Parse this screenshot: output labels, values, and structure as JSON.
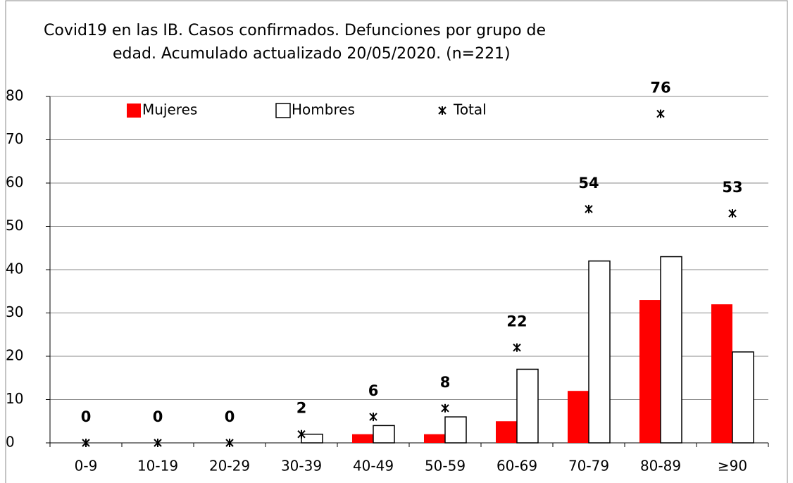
{
  "chart_data": {
    "type": "bar",
    "title": [
      "Covid19 en las IB.  Casos confirmados. Defunciones por grupo de",
      "edad. Acumulado actualizado 20/05/2020. (n=221)"
    ],
    "categories": [
      "0-9",
      "10-19",
      "20-29",
      "30-39",
      "40-49",
      "50-59",
      "60-69",
      "70-79",
      "80-89",
      "≥90"
    ],
    "series": [
      {
        "name": "Mujeres",
        "color": "#ff0000",
        "values": [
          0,
          0,
          0,
          0,
          2,
          2,
          5,
          12,
          33,
          32
        ]
      },
      {
        "name": "Hombres",
        "color": "#ffffff",
        "values": [
          0,
          0,
          0,
          2,
          4,
          6,
          17,
          42,
          43,
          21
        ]
      },
      {
        "name": "Total",
        "color": "#000000",
        "values": [
          0,
          0,
          0,
          2,
          6,
          8,
          22,
          54,
          76,
          53
        ]
      }
    ],
    "ylim": [
      0,
      80
    ],
    "yticks": [
      0,
      10,
      20,
      30,
      40,
      50,
      60,
      70,
      80
    ],
    "grid": true,
    "legend": "top"
  }
}
